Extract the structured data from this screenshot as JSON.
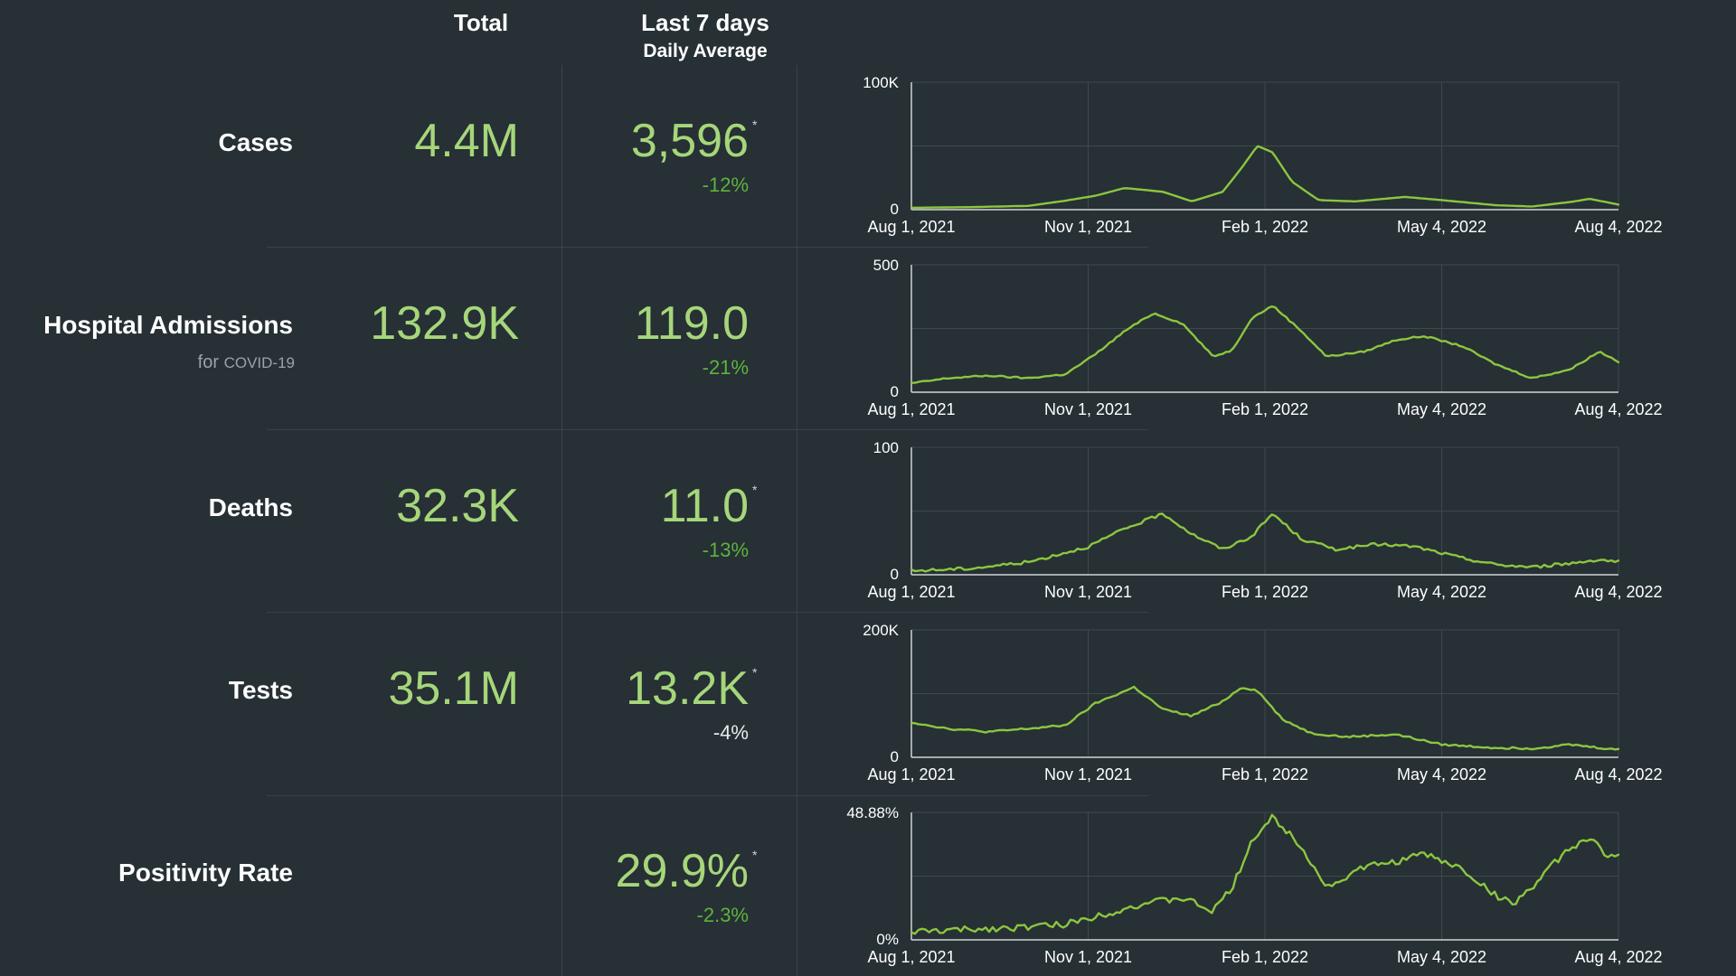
{
  "header": {
    "total": "Total",
    "last7": "Last 7 days",
    "daily_avg": "Daily Average"
  },
  "colors": {
    "background": "#263035",
    "value_green": "#a6d67a",
    "change_green": "#5db33c",
    "line_green": "#8cc63f",
    "grid": "#3e484d",
    "axis": "#d0d4d6"
  },
  "rows": [
    {
      "label": "Cases",
      "total": "4.4M",
      "avg": "3,596",
      "asterisk": "*",
      "change": "-12%",
      "change_color": "green"
    },
    {
      "label": "Hospital Admissions",
      "sublabel_prefix": "for",
      "sublabel_rest": "COVID-19",
      "total": "132.9K",
      "avg": "119.0",
      "change": "-21%",
      "change_color": "green"
    },
    {
      "label": "Deaths",
      "total": "32.3K",
      "avg": "11.0",
      "asterisk": "*",
      "change": "-13%",
      "change_color": "green"
    },
    {
      "label": "Tests",
      "total": "35.1M",
      "avg": "13.2K",
      "asterisk": "*",
      "change": "-4%",
      "change_color": "white"
    },
    {
      "label": "Positivity Rate",
      "total": "",
      "avg": "29.9%",
      "asterisk": "*",
      "change": "-2.3%",
      "change_color": "green"
    }
  ],
  "chart_data": [
    {
      "type": "line",
      "series_of": "Cases",
      "x_tick_labels": [
        "Aug 1, 2021",
        "Nov 1, 2021",
        "Feb 1, 2022",
        "May 4, 2022",
        "Aug 4, 2022"
      ],
      "y_tick_labels": [
        "0",
        "100K"
      ],
      "ylim": [
        0,
        100000
      ],
      "grid": true,
      "noise": 0,
      "x": [
        "2021-08-01",
        "2021-09-01",
        "2021-10-01",
        "2021-10-20",
        "2021-11-05",
        "2021-11-20",
        "2021-12-10",
        "2021-12-25",
        "2022-01-10",
        "2022-01-20",
        "2022-01-28",
        "2022-02-05",
        "2022-02-15",
        "2022-03-01",
        "2022-03-20",
        "2022-04-15",
        "2022-05-04",
        "2022-06-01",
        "2022-06-20",
        "2022-07-10",
        "2022-07-20",
        "2022-08-04"
      ],
      "y": [
        1500,
        2000,
        3000,
        7000,
        11000,
        17000,
        14000,
        6500,
        14000,
        33000,
        50000,
        45000,
        22000,
        7500,
        6500,
        10000,
        7500,
        3500,
        2500,
        6000,
        8500,
        4000
      ]
    },
    {
      "type": "line",
      "series_of": "Hospital Admissions",
      "x_tick_labels": [
        "Aug 1, 2021",
        "Nov 1, 2021",
        "Feb 1, 2022",
        "May 4, 2022",
        "Aug 4, 2022"
      ],
      "y_tick_labels": [
        "0",
        "500"
      ],
      "ylim": [
        0,
        500
      ],
      "grid": true,
      "noise": 3,
      "x": [
        "2021-08-01",
        "2021-08-20",
        "2021-09-10",
        "2021-09-30",
        "2021-10-20",
        "2021-11-05",
        "2021-11-20",
        "2021-12-05",
        "2021-12-20",
        "2022-01-05",
        "2022-01-15",
        "2022-01-25",
        "2022-02-05",
        "2022-02-20",
        "2022-03-05",
        "2022-03-25",
        "2022-04-10",
        "2022-04-25",
        "2022-05-15",
        "2022-06-01",
        "2022-06-20",
        "2022-07-10",
        "2022-07-25",
        "2022-08-04"
      ],
      "y": [
        35,
        55,
        65,
        55,
        70,
        150,
        240,
        310,
        270,
        140,
        165,
        290,
        340,
        240,
        140,
        160,
        205,
        220,
        180,
        110,
        55,
        90,
        160,
        120
      ]
    },
    {
      "type": "line",
      "series_of": "Deaths",
      "x_tick_labels": [
        "Aug 1, 2021",
        "Nov 1, 2021",
        "Feb 1, 2022",
        "May 4, 2022",
        "Aug 4, 2022"
      ],
      "y_tick_labels": [
        "0",
        "100"
      ],
      "ylim": [
        0,
        100
      ],
      "grid": true,
      "noise": 1.2,
      "x": [
        "2021-08-01",
        "2021-09-01",
        "2021-10-01",
        "2021-11-01",
        "2021-11-20",
        "2021-12-10",
        "2021-12-25",
        "2022-01-10",
        "2022-01-25",
        "2022-02-05",
        "2022-02-20",
        "2022-03-10",
        "2022-04-01",
        "2022-04-20",
        "2022-05-15",
        "2022-06-01",
        "2022-06-20",
        "2022-07-10",
        "2022-07-25",
        "2022-08-04"
      ],
      "y": [
        3,
        5,
        10,
        22,
        36,
        48,
        32,
        20,
        30,
        48,
        28,
        20,
        24,
        22,
        13,
        8,
        6,
        9,
        12,
        10
      ]
    },
    {
      "type": "line",
      "series_of": "Tests",
      "x_tick_labels": [
        "Aug 1, 2021",
        "Nov 1, 2021",
        "Feb 1, 2022",
        "May 4, 2022",
        "Aug 4, 2022"
      ],
      "y_tick_labels": [
        "0",
        "200K"
      ],
      "ylim": [
        0,
        200000
      ],
      "grid": true,
      "noise": 1500,
      "x": [
        "2021-08-01",
        "2021-08-20",
        "2021-09-10",
        "2021-10-01",
        "2021-10-20",
        "2021-11-05",
        "2021-11-25",
        "2021-12-10",
        "2021-12-25",
        "2022-01-10",
        "2022-01-20",
        "2022-01-28",
        "2022-02-10",
        "2022-02-25",
        "2022-03-15",
        "2022-04-10",
        "2022-05-04",
        "2022-06-01",
        "2022-06-20",
        "2022-07-10",
        "2022-07-25",
        "2022-08-04"
      ],
      "y": [
        55000,
        45000,
        40000,
        45000,
        50000,
        85000,
        110000,
        75000,
        65000,
        88000,
        110000,
        105000,
        60000,
        38000,
        32000,
        36000,
        20000,
        15000,
        14000,
        20000,
        15000,
        12000
      ]
    },
    {
      "type": "line",
      "series_of": "Positivity Rate",
      "x_tick_labels": [
        "Aug 1, 2021",
        "Nov 1, 2021",
        "Feb 1, 2022",
        "May 4, 2022",
        "Aug 4, 2022"
      ],
      "y_tick_labels": [
        "0%",
        "48.88%"
      ],
      "ylim": [
        0,
        48.88
      ],
      "grid": true,
      "noise": 1.3,
      "x": [
        "2021-08-01",
        "2021-09-01",
        "2021-10-01",
        "2021-10-20",
        "2021-11-10",
        "2021-12-01",
        "2021-12-20",
        "2022-01-05",
        "2022-01-15",
        "2022-01-25",
        "2022-02-05",
        "2022-02-20",
        "2022-03-05",
        "2022-03-25",
        "2022-04-10",
        "2022-04-25",
        "2022-05-15",
        "2022-06-01",
        "2022-06-10",
        "2022-06-20",
        "2022-07-05",
        "2022-07-20",
        "2022-07-28",
        "2022-08-04"
      ],
      "y": [
        3,
        4,
        5,
        6,
        10,
        14,
        16,
        11,
        20,
        38,
        47,
        36,
        20,
        28,
        30,
        33,
        27,
        17,
        14,
        20,
        32,
        40,
        32,
        32
      ]
    }
  ]
}
